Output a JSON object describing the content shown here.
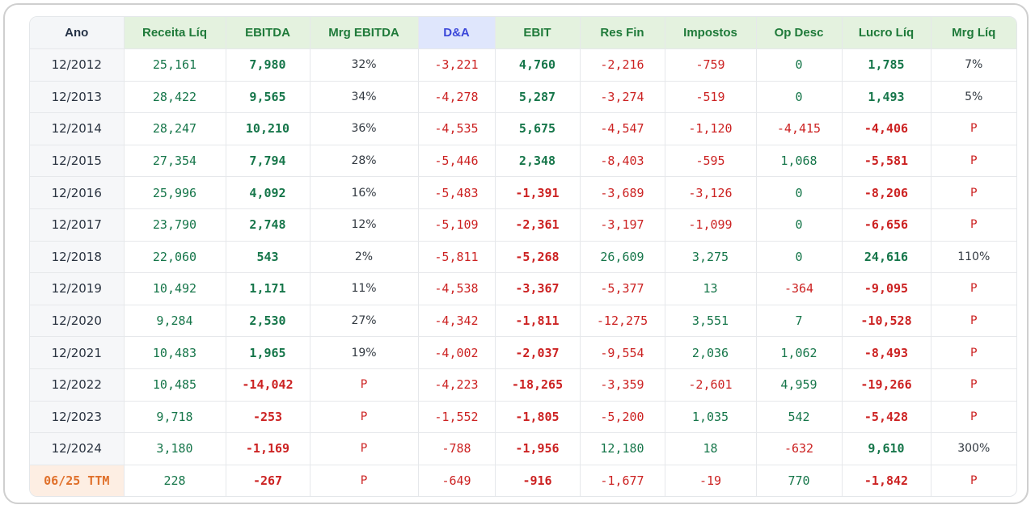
{
  "columns": [
    "Ano",
    "Receita Líq",
    "EBITDA",
    "Mrg EBITDA",
    "D&A",
    "EBIT",
    "Res Fin",
    "Impostos",
    "Op Desc",
    "Lucro Líq",
    "Mrg Líq"
  ],
  "rows": [
    [
      "12/2012",
      "25,161",
      "7,980",
      "32%",
      "-3,221",
      "4,760",
      "-2,216",
      "-759",
      "0",
      "1,785",
      "7%"
    ],
    [
      "12/2013",
      "28,422",
      "9,565",
      "34%",
      "-4,278",
      "5,287",
      "-3,274",
      "-519",
      "0",
      "1,493",
      "5%"
    ],
    [
      "12/2014",
      "28,247",
      "10,210",
      "36%",
      "-4,535",
      "5,675",
      "-4,547",
      "-1,120",
      "-4,415",
      "-4,406",
      "P"
    ],
    [
      "12/2015",
      "27,354",
      "7,794",
      "28%",
      "-5,446",
      "2,348",
      "-8,403",
      "-595",
      "1,068",
      "-5,581",
      "P"
    ],
    [
      "12/2016",
      "25,996",
      "4,092",
      "16%",
      "-5,483",
      "-1,391",
      "-3,689",
      "-3,126",
      "0",
      "-8,206",
      "P"
    ],
    [
      "12/2017",
      "23,790",
      "2,748",
      "12%",
      "-5,109",
      "-2,361",
      "-3,197",
      "-1,099",
      "0",
      "-6,656",
      "P"
    ],
    [
      "12/2018",
      "22,060",
      "543",
      "2%",
      "-5,811",
      "-5,268",
      "26,609",
      "3,275",
      "0",
      "24,616",
      "110%"
    ],
    [
      "12/2019",
      "10,492",
      "1,171",
      "11%",
      "-4,538",
      "-3,367",
      "-5,377",
      "13",
      "-364",
      "-9,095",
      "P"
    ],
    [
      "12/2020",
      "9,284",
      "2,530",
      "27%",
      "-4,342",
      "-1,811",
      "-12,275",
      "3,551",
      "7",
      "-10,528",
      "P"
    ],
    [
      "12/2021",
      "10,483",
      "1,965",
      "19%",
      "-4,002",
      "-2,037",
      "-9,554",
      "2,036",
      "1,062",
      "-8,493",
      "P"
    ],
    [
      "12/2022",
      "10,485",
      "-14,042",
      "P",
      "-4,223",
      "-18,265",
      "-3,359",
      "-2,601",
      "4,959",
      "-19,266",
      "P"
    ],
    [
      "12/2023",
      "9,718",
      "-253",
      "P",
      "-1,552",
      "-1,805",
      "-5,200",
      "1,035",
      "542",
      "-5,428",
      "P"
    ],
    [
      "12/2024",
      "3,180",
      "-1,169",
      "P",
      "-788",
      "-1,956",
      "12,180",
      "18",
      "-632",
      "9,610",
      "300%"
    ],
    [
      "06/25 TTM",
      "228",
      "-267",
      "P",
      "-649",
      "-916",
      "-1,677",
      "-19",
      "770",
      "-1,842",
      "P"
    ]
  ],
  "colors": {
    "positive": "#16764a",
    "negative": "#cc2222",
    "header_green_bg": "#e4f2df",
    "header_da_bg": "#dfe6fc",
    "ttm_text": "#e0702a"
  }
}
